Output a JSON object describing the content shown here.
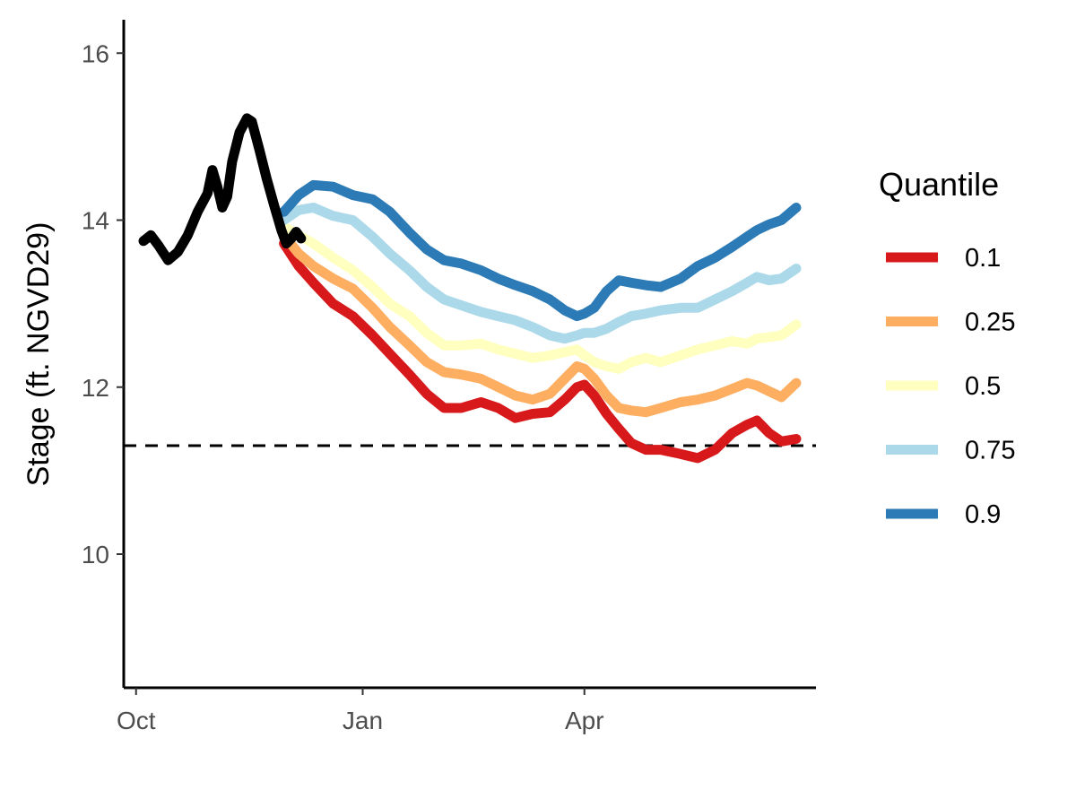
{
  "chart_data": {
    "type": "line",
    "xlabel": "",
    "ylabel": "Stage (ft. NGVD29)",
    "xlim": [
      "2022-09-26",
      "2023-07-04"
    ],
    "ylim": [
      8.4,
      16.4
    ],
    "x_ticks": [
      {
        "date": "2022-10-01",
        "label": "Oct"
      },
      {
        "date": "2023-01-01",
        "label": "Jan"
      },
      {
        "date": "2023-04-01",
        "label": "Apr"
      }
    ],
    "y_ticks": [
      10,
      12,
      14,
      16
    ],
    "grid": false,
    "legend": {
      "title": "Quantile",
      "position": "right"
    },
    "reference_line": {
      "y": 11.3,
      "style": "dashed",
      "color": "#000000"
    },
    "observed": {
      "color": "#000000",
      "points": [
        [
          "2022-10-04",
          13.75
        ],
        [
          "2022-10-07",
          13.82
        ],
        [
          "2022-10-10",
          13.7
        ],
        [
          "2022-10-14",
          13.52
        ],
        [
          "2022-10-18",
          13.62
        ],
        [
          "2022-10-22",
          13.82
        ],
        [
          "2022-10-26",
          14.1
        ],
        [
          "2022-10-30",
          14.32
        ],
        [
          "2022-11-01",
          14.6
        ],
        [
          "2022-11-03",
          14.4
        ],
        [
          "2022-11-05",
          14.15
        ],
        [
          "2022-11-07",
          14.28
        ],
        [
          "2022-11-09",
          14.7
        ],
        [
          "2022-11-12",
          15.05
        ],
        [
          "2022-11-15",
          15.22
        ],
        [
          "2022-11-17",
          15.18
        ],
        [
          "2022-11-20",
          14.85
        ],
        [
          "2022-11-23",
          14.5
        ],
        [
          "2022-11-26",
          14.18
        ],
        [
          "2022-11-29",
          13.88
        ],
        [
          "2022-12-01",
          13.72
        ],
        [
          "2022-12-03",
          13.78
        ],
        [
          "2022-12-05",
          13.86
        ],
        [
          "2022-12-07",
          13.78
        ]
      ]
    },
    "series": [
      {
        "name": "0.1",
        "color": "#d7191c",
        "points": [
          [
            "2022-11-30",
            13.72
          ],
          [
            "2022-12-06",
            13.45
          ],
          [
            "2022-12-12",
            13.25
          ],
          [
            "2022-12-20",
            13.0
          ],
          [
            "2022-12-28",
            12.85
          ],
          [
            "2023-01-05",
            12.62
          ],
          [
            "2023-01-12",
            12.4
          ],
          [
            "2023-01-20",
            12.15
          ],
          [
            "2023-01-27",
            11.92
          ],
          [
            "2023-02-03",
            11.75
          ],
          [
            "2023-02-10",
            11.75
          ],
          [
            "2023-02-18",
            11.82
          ],
          [
            "2023-02-25",
            11.75
          ],
          [
            "2023-03-04",
            11.63
          ],
          [
            "2023-03-11",
            11.68
          ],
          [
            "2023-03-18",
            11.7
          ],
          [
            "2023-03-24",
            11.85
          ],
          [
            "2023-03-29",
            12.0
          ],
          [
            "2023-04-01",
            12.03
          ],
          [
            "2023-04-05",
            11.9
          ],
          [
            "2023-04-10",
            11.68
          ],
          [
            "2023-04-15",
            11.5
          ],
          [
            "2023-04-20",
            11.33
          ],
          [
            "2023-04-26",
            11.25
          ],
          [
            "2023-05-02",
            11.25
          ],
          [
            "2023-05-10",
            11.2
          ],
          [
            "2023-05-17",
            11.15
          ],
          [
            "2023-05-24",
            11.25
          ],
          [
            "2023-05-31",
            11.45
          ],
          [
            "2023-06-06",
            11.55
          ],
          [
            "2023-06-10",
            11.6
          ],
          [
            "2023-06-15",
            11.45
          ],
          [
            "2023-06-20",
            11.35
          ],
          [
            "2023-06-26",
            11.38
          ]
        ]
      },
      {
        "name": "0.25",
        "color": "#fdae61",
        "points": [
          [
            "2022-11-30",
            13.82
          ],
          [
            "2022-12-06",
            13.6
          ],
          [
            "2022-12-12",
            13.45
          ],
          [
            "2022-12-20",
            13.3
          ],
          [
            "2022-12-28",
            13.18
          ],
          [
            "2023-01-05",
            12.95
          ],
          [
            "2023-01-12",
            12.72
          ],
          [
            "2023-01-20",
            12.5
          ],
          [
            "2023-01-27",
            12.3
          ],
          [
            "2023-02-03",
            12.18
          ],
          [
            "2023-02-10",
            12.15
          ],
          [
            "2023-02-18",
            12.1
          ],
          [
            "2023-02-25",
            12.0
          ],
          [
            "2023-03-04",
            11.9
          ],
          [
            "2023-03-11",
            11.85
          ],
          [
            "2023-03-18",
            11.92
          ],
          [
            "2023-03-24",
            12.1
          ],
          [
            "2023-03-29",
            12.25
          ],
          [
            "2023-04-01",
            12.22
          ],
          [
            "2023-04-05",
            12.1
          ],
          [
            "2023-04-10",
            11.9
          ],
          [
            "2023-04-15",
            11.75
          ],
          [
            "2023-04-20",
            11.72
          ],
          [
            "2023-04-26",
            11.7
          ],
          [
            "2023-05-02",
            11.75
          ],
          [
            "2023-05-10",
            11.82
          ],
          [
            "2023-05-17",
            11.85
          ],
          [
            "2023-05-24",
            11.9
          ],
          [
            "2023-05-31",
            11.98
          ],
          [
            "2023-06-06",
            12.05
          ],
          [
            "2023-06-10",
            12.02
          ],
          [
            "2023-06-15",
            11.95
          ],
          [
            "2023-06-20",
            11.88
          ],
          [
            "2023-06-26",
            12.05
          ]
        ]
      },
      {
        "name": "0.5",
        "color": "#ffffbf",
        "points": [
          [
            "2022-11-30",
            13.92
          ],
          [
            "2022-12-06",
            13.82
          ],
          [
            "2022-12-12",
            13.72
          ],
          [
            "2022-12-20",
            13.55
          ],
          [
            "2022-12-28",
            13.4
          ],
          [
            "2023-01-05",
            13.2
          ],
          [
            "2023-01-12",
            13.0
          ],
          [
            "2023-01-20",
            12.85
          ],
          [
            "2023-01-27",
            12.65
          ],
          [
            "2023-02-03",
            12.5
          ],
          [
            "2023-02-10",
            12.5
          ],
          [
            "2023-02-18",
            12.52
          ],
          [
            "2023-02-25",
            12.45
          ],
          [
            "2023-03-04",
            12.4
          ],
          [
            "2023-03-11",
            12.35
          ],
          [
            "2023-03-18",
            12.38
          ],
          [
            "2023-03-24",
            12.42
          ],
          [
            "2023-03-29",
            12.45
          ],
          [
            "2023-04-01",
            12.38
          ],
          [
            "2023-04-05",
            12.3
          ],
          [
            "2023-04-10",
            12.25
          ],
          [
            "2023-04-15",
            12.22
          ],
          [
            "2023-04-20",
            12.3
          ],
          [
            "2023-04-26",
            12.35
          ],
          [
            "2023-05-02",
            12.3
          ],
          [
            "2023-05-10",
            12.38
          ],
          [
            "2023-05-17",
            12.45
          ],
          [
            "2023-05-24",
            12.5
          ],
          [
            "2023-05-31",
            12.55
          ],
          [
            "2023-06-06",
            12.52
          ],
          [
            "2023-06-10",
            12.58
          ],
          [
            "2023-06-15",
            12.6
          ],
          [
            "2023-06-20",
            12.62
          ],
          [
            "2023-06-26",
            12.75
          ]
        ]
      },
      {
        "name": "0.75",
        "color": "#abd9e9",
        "points": [
          [
            "2022-11-30",
            14.0
          ],
          [
            "2022-12-06",
            14.12
          ],
          [
            "2022-12-12",
            14.15
          ],
          [
            "2022-12-20",
            14.05
          ],
          [
            "2022-12-28",
            14.0
          ],
          [
            "2023-01-05",
            13.8
          ],
          [
            "2023-01-12",
            13.6
          ],
          [
            "2023-01-20",
            13.4
          ],
          [
            "2023-01-27",
            13.2
          ],
          [
            "2023-02-03",
            13.05
          ],
          [
            "2023-02-10",
            12.98
          ],
          [
            "2023-02-18",
            12.9
          ],
          [
            "2023-02-25",
            12.85
          ],
          [
            "2023-03-04",
            12.8
          ],
          [
            "2023-03-11",
            12.72
          ],
          [
            "2023-03-18",
            12.62
          ],
          [
            "2023-03-24",
            12.58
          ],
          [
            "2023-03-29",
            12.62
          ],
          [
            "2023-04-01",
            12.65
          ],
          [
            "2023-04-05",
            12.65
          ],
          [
            "2023-04-10",
            12.7
          ],
          [
            "2023-04-15",
            12.78
          ],
          [
            "2023-04-20",
            12.85
          ],
          [
            "2023-04-26",
            12.88
          ],
          [
            "2023-05-02",
            12.92
          ],
          [
            "2023-05-10",
            12.95
          ],
          [
            "2023-05-17",
            12.95
          ],
          [
            "2023-05-24",
            13.05
          ],
          [
            "2023-05-31",
            13.15
          ],
          [
            "2023-06-06",
            13.25
          ],
          [
            "2023-06-10",
            13.32
          ],
          [
            "2023-06-15",
            13.28
          ],
          [
            "2023-06-20",
            13.3
          ],
          [
            "2023-06-26",
            13.42
          ]
        ]
      },
      {
        "name": "0.9",
        "color": "#2c7bb6",
        "points": [
          [
            "2022-11-30",
            14.1
          ],
          [
            "2022-12-06",
            14.3
          ],
          [
            "2022-12-12",
            14.42
          ],
          [
            "2022-12-20",
            14.4
          ],
          [
            "2022-12-28",
            14.3
          ],
          [
            "2023-01-05",
            14.25
          ],
          [
            "2023-01-12",
            14.1
          ],
          [
            "2023-01-20",
            13.85
          ],
          [
            "2023-01-27",
            13.65
          ],
          [
            "2023-02-03",
            13.52
          ],
          [
            "2023-02-10",
            13.48
          ],
          [
            "2023-02-18",
            13.4
          ],
          [
            "2023-02-25",
            13.3
          ],
          [
            "2023-03-04",
            13.22
          ],
          [
            "2023-03-11",
            13.15
          ],
          [
            "2023-03-18",
            13.05
          ],
          [
            "2023-03-24",
            12.92
          ],
          [
            "2023-03-29",
            12.85
          ],
          [
            "2023-04-01",
            12.88
          ],
          [
            "2023-04-05",
            12.95
          ],
          [
            "2023-04-10",
            13.15
          ],
          [
            "2023-04-15",
            13.28
          ],
          [
            "2023-04-20",
            13.25
          ],
          [
            "2023-04-26",
            13.22
          ],
          [
            "2023-05-02",
            13.2
          ],
          [
            "2023-05-10",
            13.3
          ],
          [
            "2023-05-17",
            13.45
          ],
          [
            "2023-05-24",
            13.55
          ],
          [
            "2023-05-31",
            13.68
          ],
          [
            "2023-06-06",
            13.8
          ],
          [
            "2023-06-10",
            13.88
          ],
          [
            "2023-06-15",
            13.95
          ],
          [
            "2023-06-20",
            14.0
          ],
          [
            "2023-06-26",
            14.15
          ]
        ]
      }
    ]
  }
}
